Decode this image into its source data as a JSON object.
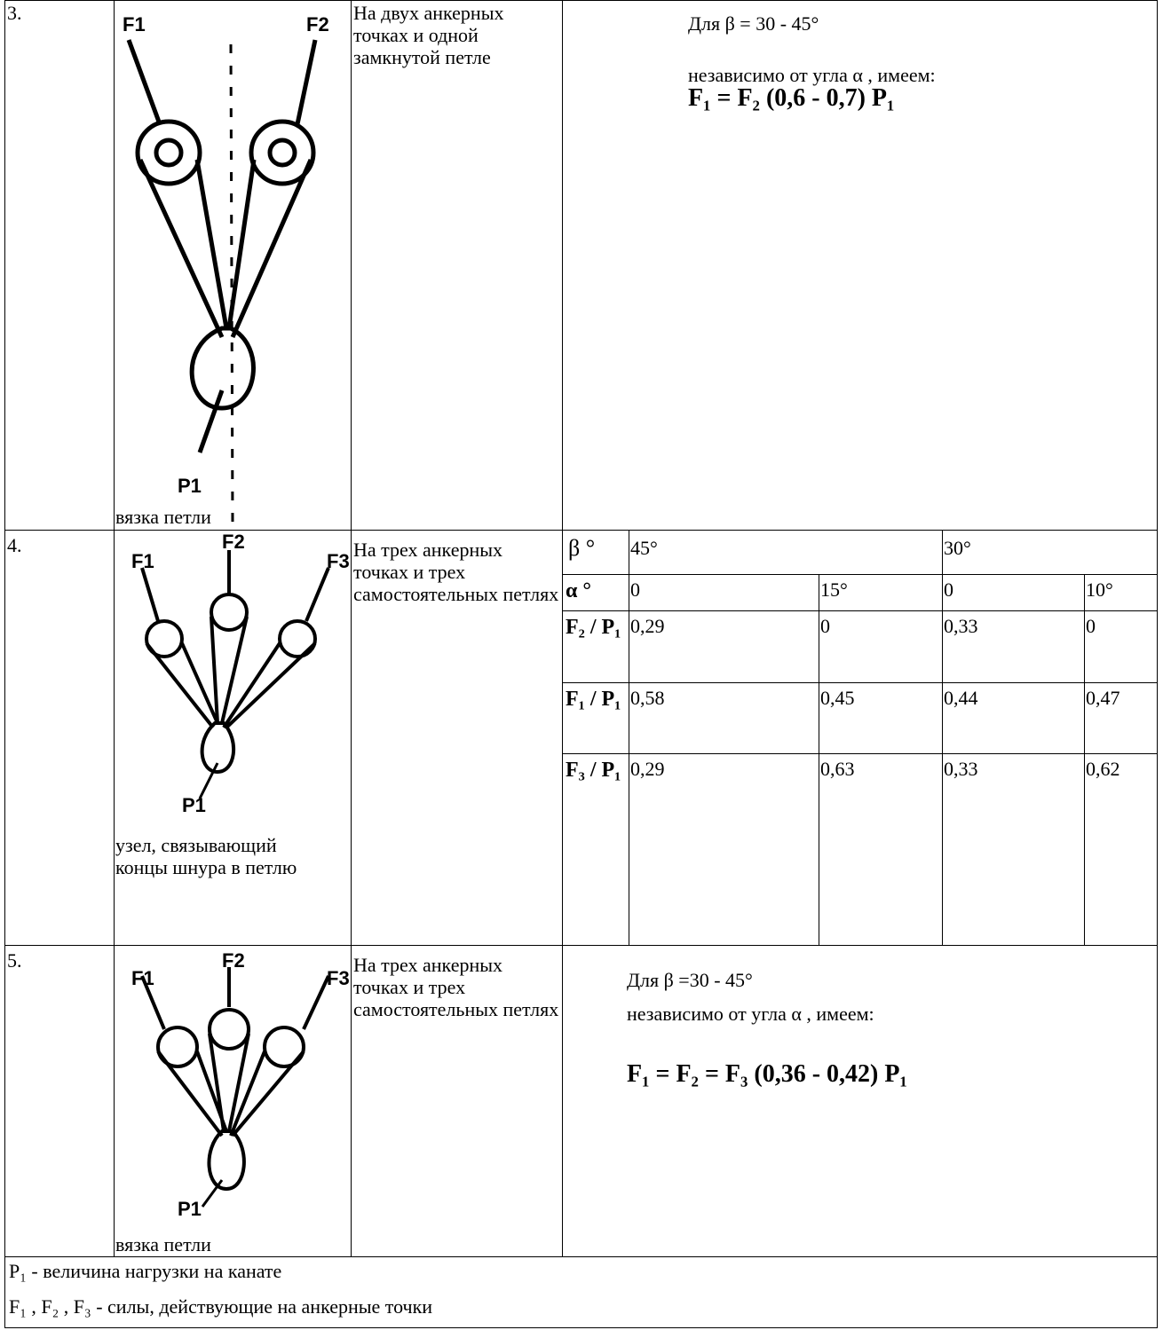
{
  "rows": [
    {
      "number": "3.",
      "figure": {
        "labels": [
          "F1",
          "F2",
          "P1"
        ]
      },
      "caption": "вязка петли",
      "description": "На двух анкерных точках и одной замкнутой петле",
      "formula": [
        "Для β = 30 - 45°",
        "независимо от угла α , имеем:",
        "F₁ = F₂ (0,6 - 0,7) P₁"
      ]
    },
    {
      "number": "4.",
      "figure": {
        "labels": [
          "F1",
          "F2",
          "F3",
          "P1"
        ]
      },
      "caption": "узел, связывающий концы шнура в петлю",
      "description": "На трех анкерных точках и трех самостоятельных петлях",
      "table": {
        "header": {
          "label": "β °",
          "groups": [
            "45°",
            "30°"
          ]
        },
        "rows": [
          [
            "α °",
            "0",
            "15°",
            "0",
            "10°"
          ],
          [
            "F₂ / P₁",
            "0,29",
            "0",
            "0,33",
            "0"
          ],
          [
            "F₁ / P₁",
            "0,58",
            "0,45",
            "0,44",
            "0,47"
          ],
          [
            "F₃ / P₁",
            "0,29",
            "0,63",
            "0,33",
            "0,62"
          ]
        ]
      }
    },
    {
      "number": "5.",
      "figure": {
        "labels": [
          "F1",
          "F2",
          "F3",
          "P1"
        ]
      },
      "caption": "вязка петли",
      "description": "На трех анкерных точках и трех самостоятельных петлях",
      "formula": [
        "Для β =30 - 45°",
        "независимо от угла α , имеем:",
        "F₁ = F₂ = F₃ (0,36 - 0,42) P₁"
      ]
    }
  ],
  "notes": [
    "P₁ - величина нагрузки на канате",
    "F₁ , F₂ , F₃ - силы, действующие на анкерные точки"
  ]
}
